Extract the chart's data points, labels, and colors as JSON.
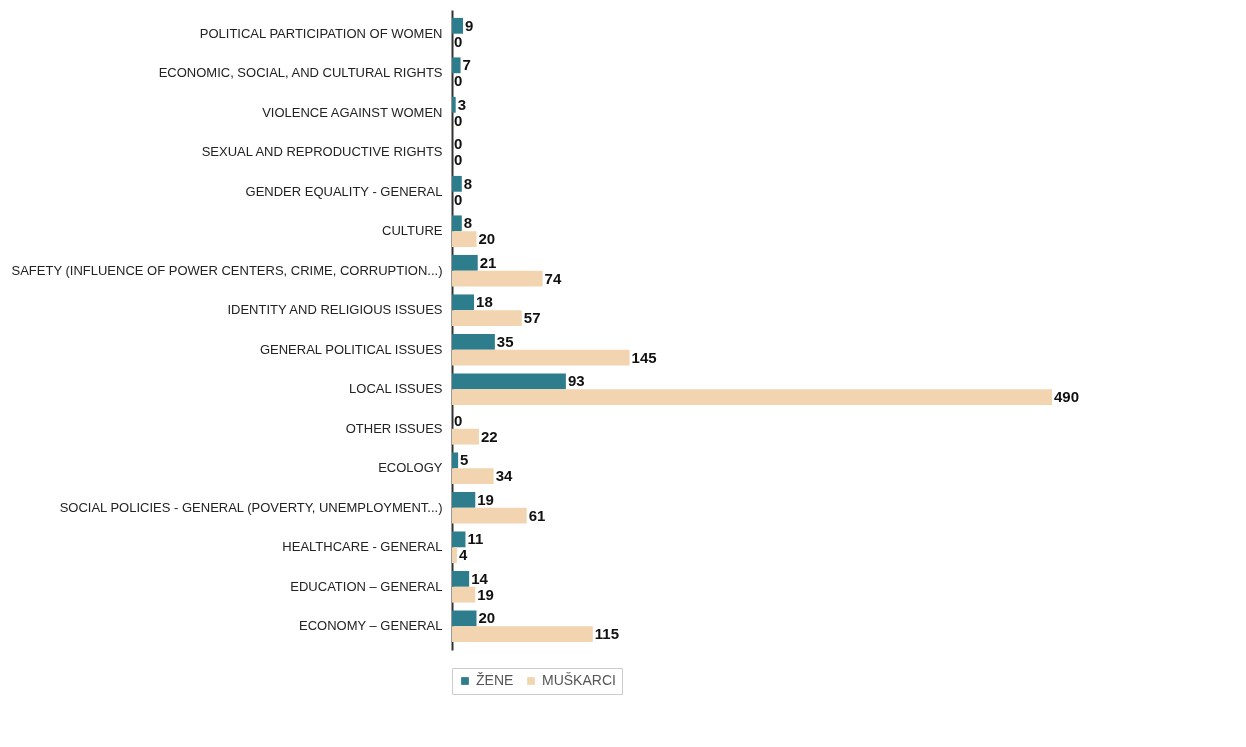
{
  "chart_data": {
    "type": "bar",
    "orientation": "horizontal",
    "categories": [
      "POLITICAL PARTICIPATION OF WOMEN",
      "ECONOMIC, SOCIAL, AND CULTURAL RIGHTS",
      "VIOLENCE AGAINST WOMEN",
      "SEXUAL AND REPRODUCTIVE RIGHTS",
      "GENDER EQUALITY - GENERAL",
      "CULTURE",
      "SAFETY (INFLUENCE OF POWER CENTERS, CRIME, CORRUPTION...)",
      "IDENTITY AND RELIGIOUS ISSUES",
      "GENERAL POLITICAL ISSUES",
      "LOCAL ISSUES",
      "OTHER ISSUES",
      "ECOLOGY",
      "SOCIAL POLICIES - GENERAL (POVERTY, UNEMPLOYMENT...)",
      "HEALTHCARE - GENERAL",
      "EDUCATION – GENERAL",
      "ECONOMY – GENERAL"
    ],
    "series": [
      {
        "name": "ŽENE",
        "color": "#2e7d8c",
        "values": [
          9,
          7,
          3,
          0,
          8,
          8,
          21,
          18,
          35,
          93,
          0,
          5,
          19,
          11,
          14,
          20
        ]
      },
      {
        "name": "MUŠKARCI",
        "color": "#f2d5b0",
        "values": [
          0,
          0,
          0,
          0,
          0,
          20,
          74,
          57,
          145,
          490,
          22,
          34,
          61,
          4,
          19,
          115
        ]
      }
    ],
    "data_labels": true,
    "legend": "bottom",
    "grid": false
  }
}
